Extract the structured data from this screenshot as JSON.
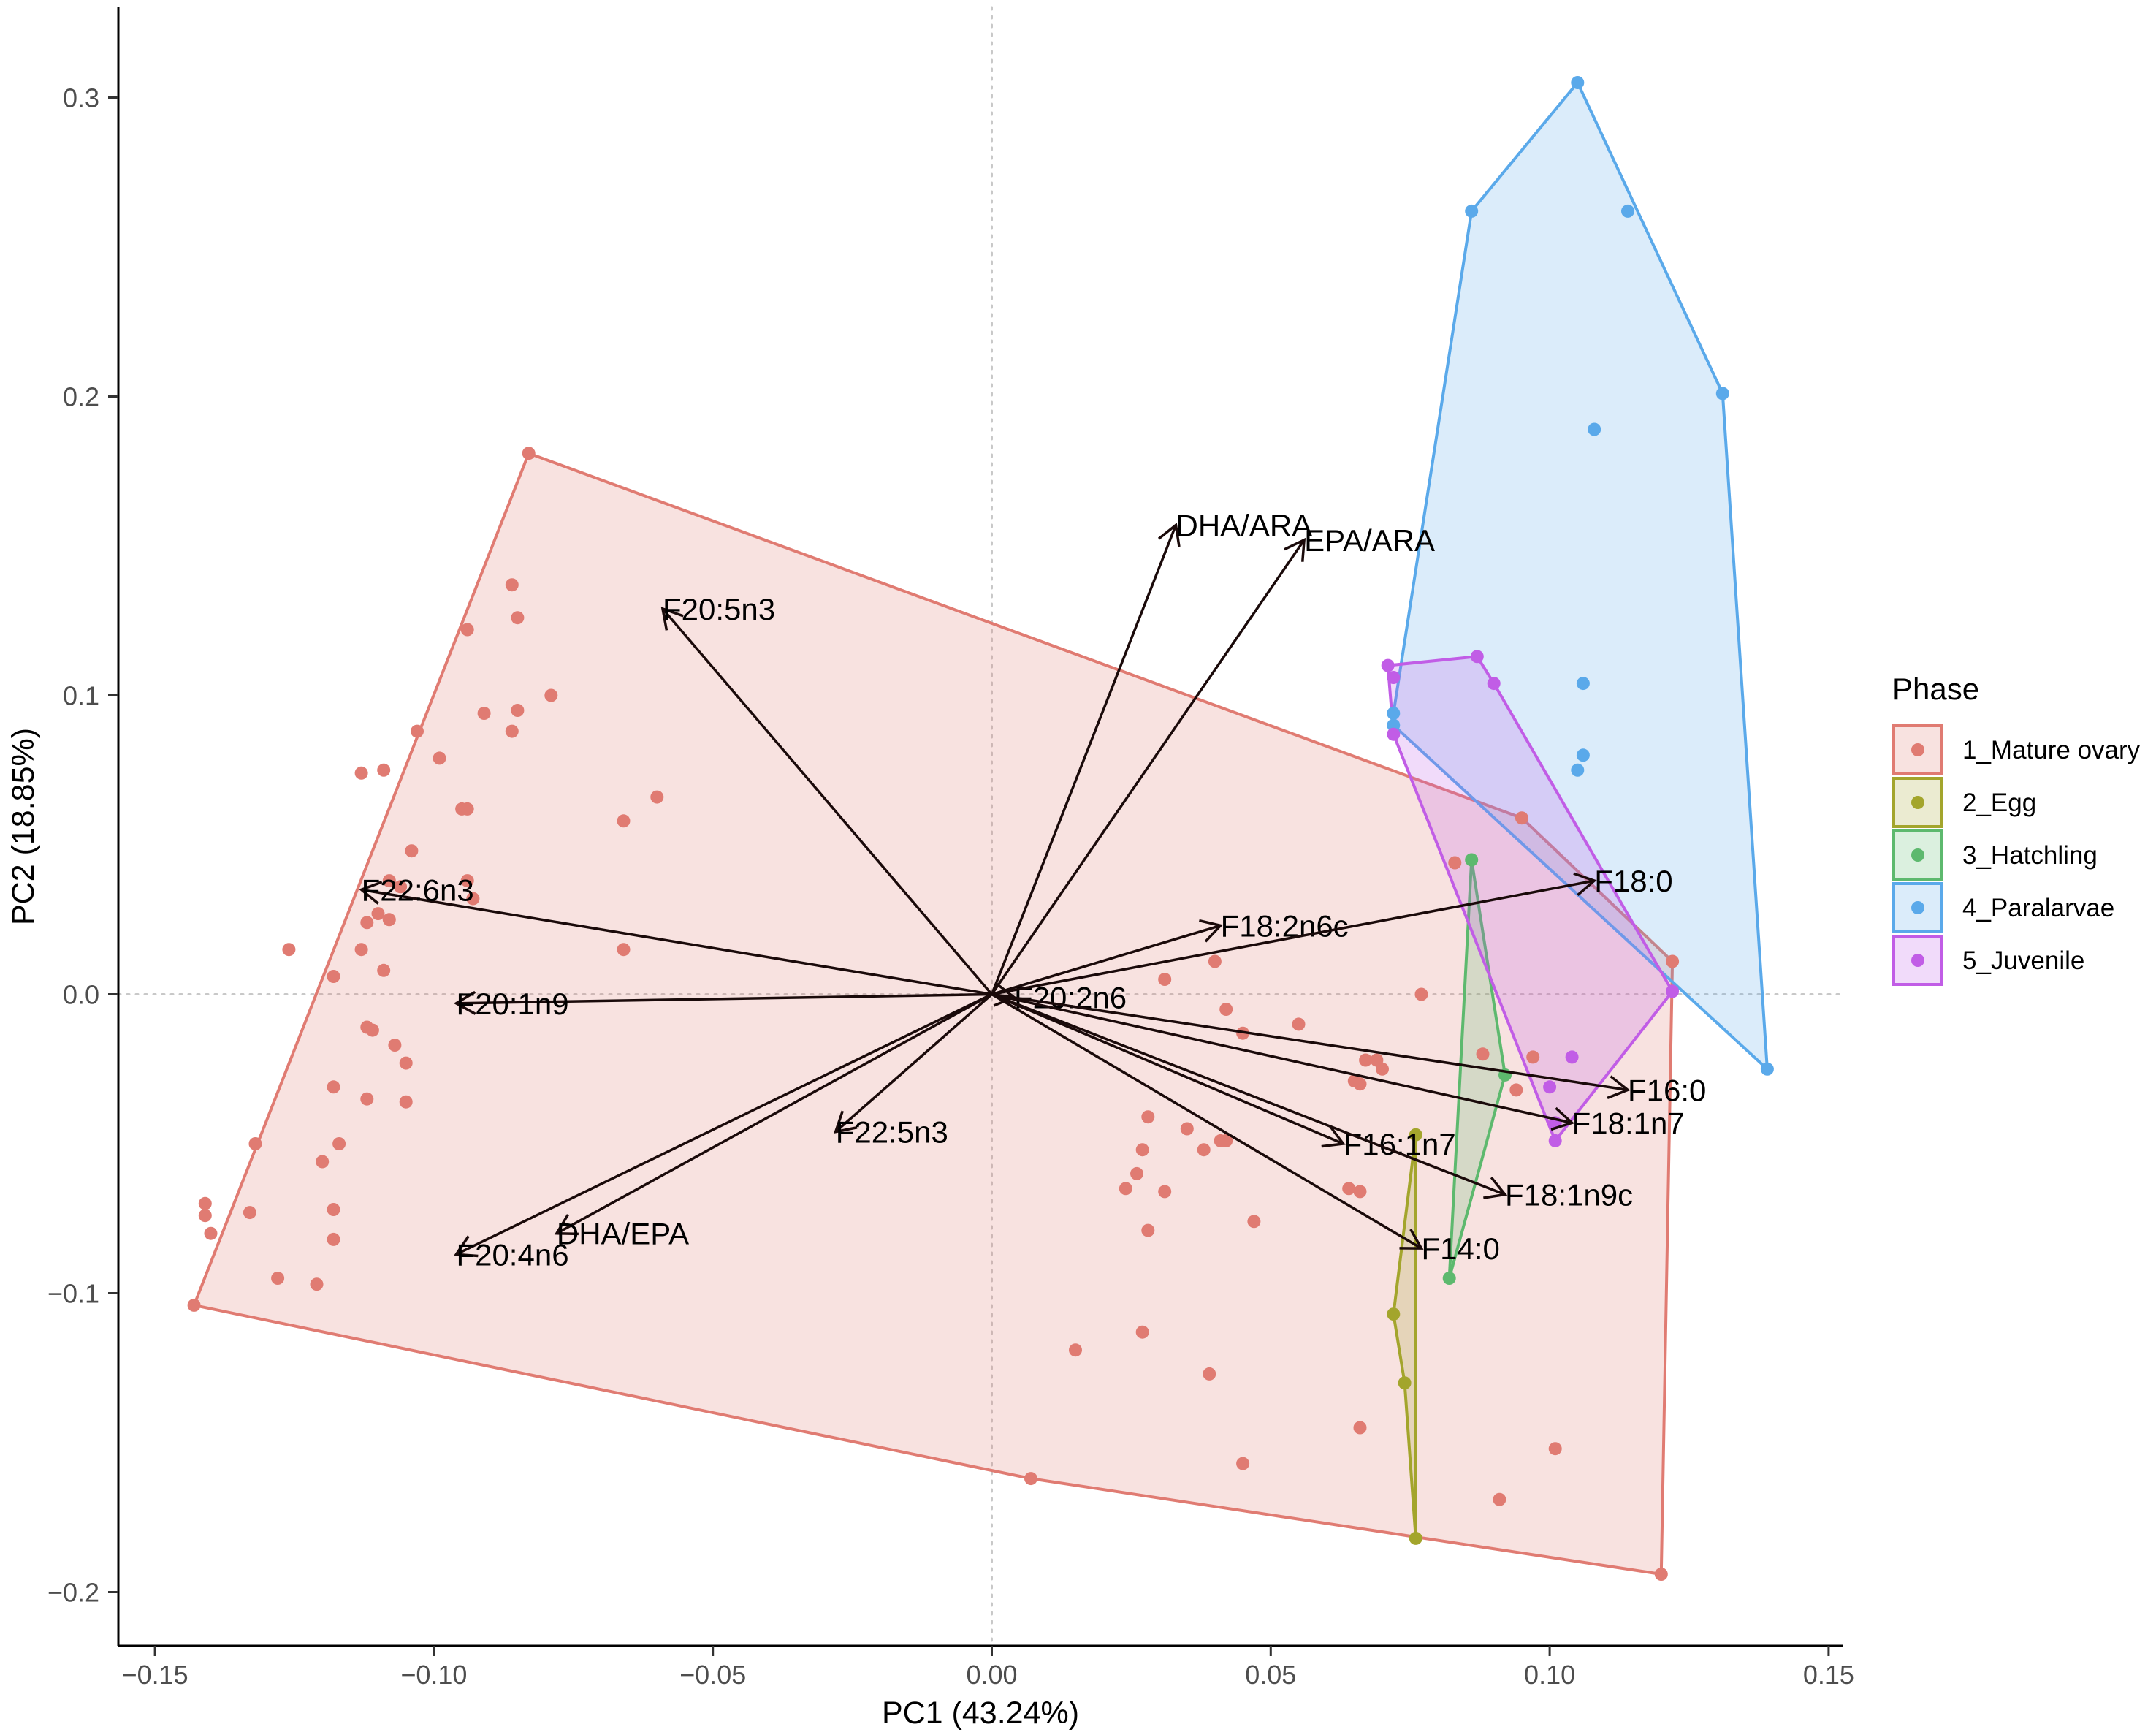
{
  "chart_data": {
    "type": "scatter",
    "subtype": "pca-biplot",
    "title": "",
    "xlabel": "PC1 (43.24%)",
    "ylabel": "PC2 (18.85%)",
    "xlim": [
      -0.158,
      0.153
    ],
    "ylim": [
      -0.215,
      0.33
    ],
    "xticks": [
      -0.15,
      -0.1,
      -0.05,
      0.0,
      0.05,
      0.1,
      0.15
    ],
    "xtick_labels": [
      "−0.15",
      "−0.10",
      "−0.05",
      "0.00",
      "0.05",
      "0.10",
      "0.15"
    ],
    "yticks": [
      -0.2,
      -0.1,
      0.0,
      0.1,
      0.2,
      0.3
    ],
    "ytick_labels": [
      "−0.2",
      "−0.1",
      "0.0",
      "0.1",
      "0.2",
      "0.3"
    ],
    "grid": false,
    "reference_lines": {
      "x": 0,
      "y": 0,
      "style": "dotted"
    },
    "legend": {
      "title": "Phase",
      "position": "right"
    },
    "series": [
      {
        "name": "1_Mature ovary",
        "color": "#E07B72",
        "hull": [
          [
            -0.083,
            0.181
          ],
          [
            -0.143,
            -0.104
          ],
          [
            0.007,
            -0.162
          ],
          [
            0.12,
            -0.194
          ],
          [
            0.122,
            0.011
          ],
          [
            0.095,
            0.059
          ]
        ],
        "points": [
          [
            -0.083,
            0.181
          ],
          [
            -0.086,
            0.137
          ],
          [
            -0.085,
            0.126
          ],
          [
            -0.094,
            0.122
          ],
          [
            -0.079,
            0.1
          ],
          [
            -0.085,
            0.095
          ],
          [
            -0.091,
            0.094
          ],
          [
            -0.086,
            0.088
          ],
          [
            -0.103,
            0.088
          ],
          [
            -0.099,
            0.079
          ],
          [
            -0.113,
            0.074
          ],
          [
            -0.109,
            0.075
          ],
          [
            -0.06,
            0.066
          ],
          [
            -0.095,
            0.062
          ],
          [
            -0.094,
            0.062
          ],
          [
            -0.066,
            0.058
          ],
          [
            -0.104,
            0.048
          ],
          [
            -0.094,
            0.038
          ],
          [
            -0.093,
            0.032
          ],
          [
            -0.106,
            0.036
          ],
          [
            -0.108,
            0.038
          ],
          [
            -0.112,
            0.024
          ],
          [
            -0.108,
            0.025
          ],
          [
            -0.11,
            0.027
          ],
          [
            -0.113,
            0.015
          ],
          [
            -0.126,
            0.015
          ],
          [
            -0.066,
            0.015
          ],
          [
            -0.109,
            0.008
          ],
          [
            -0.118,
            0.006
          ],
          [
            -0.112,
            -0.011
          ],
          [
            -0.111,
            -0.012
          ],
          [
            -0.107,
            -0.017
          ],
          [
            -0.105,
            -0.023
          ],
          [
            -0.118,
            -0.031
          ],
          [
            -0.112,
            -0.035
          ],
          [
            -0.105,
            -0.036
          ],
          [
            -0.132,
            -0.05
          ],
          [
            -0.117,
            -0.05
          ],
          [
            -0.12,
            -0.056
          ],
          [
            -0.133,
            -0.073
          ],
          [
            -0.118,
            -0.072
          ],
          [
            -0.141,
            -0.07
          ],
          [
            -0.141,
            -0.074
          ],
          [
            -0.14,
            -0.08
          ],
          [
            -0.118,
            -0.082
          ],
          [
            -0.128,
            -0.095
          ],
          [
            -0.121,
            -0.097
          ],
          [
            -0.143,
            -0.104
          ],
          [
            0.031,
            0.005
          ],
          [
            0.04,
            0.011
          ],
          [
            0.042,
            -0.005
          ],
          [
            0.045,
            -0.013
          ],
          [
            0.055,
            -0.01
          ],
          [
            0.077,
            0.0
          ],
          [
            0.067,
            -0.022
          ],
          [
            0.069,
            -0.022
          ],
          [
            0.07,
            -0.025
          ],
          [
            0.065,
            -0.029
          ],
          [
            0.066,
            -0.03
          ],
          [
            0.094,
            -0.032
          ],
          [
            0.097,
            -0.021
          ],
          [
            0.088,
            -0.02
          ],
          [
            0.028,
            -0.041
          ],
          [
            0.035,
            -0.045
          ],
          [
            0.042,
            -0.049
          ],
          [
            0.038,
            -0.052
          ],
          [
            0.027,
            -0.052
          ],
          [
            0.041,
            -0.049
          ],
          [
            0.026,
            -0.06
          ],
          [
            0.024,
            -0.065
          ],
          [
            0.031,
            -0.066
          ],
          [
            0.064,
            -0.065
          ],
          [
            0.066,
            -0.066
          ],
          [
            0.047,
            -0.076
          ],
          [
            0.028,
            -0.079
          ],
          [
            0.015,
            -0.119
          ],
          [
            0.027,
            -0.113
          ],
          [
            0.039,
            -0.127
          ],
          [
            0.066,
            -0.145
          ],
          [
            0.045,
            -0.157
          ],
          [
            0.101,
            -0.152
          ],
          [
            0.091,
            -0.169
          ],
          [
            0.007,
            -0.162
          ],
          [
            0.12,
            -0.194
          ],
          [
            0.122,
            0.011
          ],
          [
            0.095,
            0.059
          ],
          [
            0.083,
            0.044
          ]
        ]
      },
      {
        "name": "2_Egg",
        "color": "#A3A52C",
        "hull": [
          [
            0.076,
            -0.047
          ],
          [
            0.072,
            -0.107
          ],
          [
            0.074,
            -0.13
          ],
          [
            0.076,
            -0.182
          ]
        ],
        "points": [
          [
            0.076,
            -0.047
          ],
          [
            0.072,
            -0.107
          ],
          [
            0.074,
            -0.13
          ],
          [
            0.076,
            -0.182
          ]
        ]
      },
      {
        "name": "3_Hatchling",
        "color": "#5DB96E",
        "hull": [
          [
            0.086,
            0.045
          ],
          [
            0.092,
            -0.027
          ],
          [
            0.082,
            -0.095
          ]
        ],
        "points": [
          [
            0.086,
            0.045
          ],
          [
            0.092,
            -0.027
          ],
          [
            0.082,
            -0.095
          ]
        ]
      },
      {
        "name": "4_Paralarvae",
        "color": "#5AA9EA",
        "hull": [
          [
            0.105,
            0.305
          ],
          [
            0.131,
            0.201
          ],
          [
            0.139,
            -0.025
          ],
          [
            0.072,
            0.09
          ],
          [
            0.072,
            0.094
          ],
          [
            0.086,
            0.262
          ]
        ],
        "points": [
          [
            0.105,
            0.305
          ],
          [
            0.086,
            0.262
          ],
          [
            0.114,
            0.262
          ],
          [
            0.131,
            0.201
          ],
          [
            0.108,
            0.189
          ],
          [
            0.106,
            0.104
          ],
          [
            0.106,
            0.08
          ],
          [
            0.105,
            0.075
          ],
          [
            0.072,
            0.094
          ],
          [
            0.072,
            0.09
          ],
          [
            0.139,
            -0.025
          ]
        ]
      },
      {
        "name": "5_Juvenile",
        "color": "#C15DE6",
        "hull": [
          [
            0.071,
            0.11
          ],
          [
            0.087,
            0.113
          ],
          [
            0.09,
            0.104
          ],
          [
            0.122,
            0.001
          ],
          [
            0.101,
            -0.049
          ],
          [
            0.072,
            0.087
          ]
        ],
        "points": [
          [
            0.071,
            0.11
          ],
          [
            0.072,
            0.106
          ],
          [
            0.087,
            0.113
          ],
          [
            0.09,
            0.104
          ],
          [
            0.072,
            0.087
          ],
          [
            0.122,
            0.001
          ],
          [
            0.104,
            -0.021
          ],
          [
            0.1,
            -0.031
          ],
          [
            0.101,
            -0.043
          ],
          [
            0.101,
            -0.049
          ]
        ]
      }
    ],
    "loadings": [
      {
        "name": "DHA/ARA",
        "x": 0.033,
        "y": 0.157
      },
      {
        "name": "EPA/ARA",
        "x": 0.056,
        "y": 0.152
      },
      {
        "name": "F20:5n3",
        "x": -0.059,
        "y": 0.129
      },
      {
        "name": "F22:6n3",
        "x": -0.113,
        "y": 0.035
      },
      {
        "name": "F20:1n9",
        "x": -0.096,
        "y": -0.003
      },
      {
        "name": "F20:2n6",
        "x": 0.004,
        "y": -0.001
      },
      {
        "name": "F22:5n3",
        "x": -0.028,
        "y": -0.046
      },
      {
        "name": "F20:4n6",
        "x": -0.096,
        "y": -0.087
      },
      {
        "name": "DHA/EPA",
        "x": -0.078,
        "y": -0.08
      },
      {
        "name": "F18:2n6c",
        "x": 0.041,
        "y": 0.023
      },
      {
        "name": "F18:0",
        "x": 0.108,
        "y": 0.038
      },
      {
        "name": "F16:0",
        "x": 0.114,
        "y": -0.032
      },
      {
        "name": "F18:1n7",
        "x": 0.104,
        "y": -0.043
      },
      {
        "name": "F16:1n7",
        "x": 0.063,
        "y": -0.05
      },
      {
        "name": "F18:1n9c",
        "x": 0.092,
        "y": -0.067
      },
      {
        "name": "F14:0",
        "x": 0.077,
        "y": -0.085
      }
    ]
  }
}
